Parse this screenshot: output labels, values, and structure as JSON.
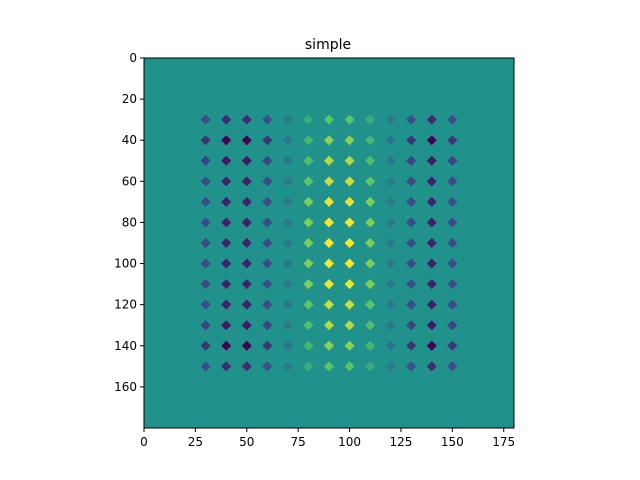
{
  "chart_data": {
    "type": "heatmap",
    "title": "simple",
    "xlabel": "",
    "ylabel": "",
    "xlim": [
      0,
      180
    ],
    "ylim": [
      0,
      180
    ],
    "y_inverted": true,
    "grid": false,
    "background_color": "#21918c",
    "x_ticks": [
      0,
      25,
      50,
      75,
      100,
      125,
      150,
      175
    ],
    "y_ticks": [
      0,
      20,
      40,
      60,
      80,
      100,
      120,
      140,
      160
    ],
    "marker_shape": "diamond",
    "marker_x": [
      30,
      40,
      50,
      60,
      70,
      80,
      90,
      100,
      110,
      120,
      130,
      140,
      150
    ],
    "marker_y": [
      30,
      40,
      50,
      60,
      70,
      80,
      90,
      100,
      110,
      120,
      130,
      140,
      150
    ],
    "colormap": "viridis",
    "value_range": [
      -1,
      1
    ],
    "values": [
      [
        -0.53,
        -0.75,
        -0.75,
        -0.53,
        -0.17,
        0.23,
        0.46,
        0.46,
        0.23,
        -0.17,
        -0.53,
        -0.75,
        -0.53
      ],
      [
        -0.68,
        -1.0,
        -1.0,
        -0.68,
        -0.23,
        0.34,
        0.65,
        0.65,
        0.34,
        -0.23,
        -0.68,
        -1.0,
        -0.68
      ],
      [
        -0.6,
        -0.85,
        -0.85,
        -0.6,
        -0.2,
        0.4,
        0.78,
        0.78,
        0.4,
        -0.2,
        -0.6,
        -0.85,
        -0.6
      ],
      [
        -0.55,
        -0.8,
        -0.8,
        -0.55,
        -0.18,
        0.48,
        0.85,
        0.85,
        0.48,
        -0.18,
        -0.55,
        -0.8,
        -0.55
      ],
      [
        -0.55,
        -0.8,
        -0.8,
        -0.55,
        -0.18,
        0.6,
        0.95,
        0.95,
        0.6,
        -0.18,
        -0.55,
        -0.8,
        -0.55
      ],
      [
        -0.55,
        -0.8,
        -0.8,
        -0.55,
        -0.18,
        0.6,
        0.98,
        0.98,
        0.6,
        -0.18,
        -0.55,
        -0.8,
        -0.55
      ],
      [
        -0.55,
        -0.8,
        -0.8,
        -0.55,
        -0.18,
        0.6,
        1.0,
        1.0,
        0.6,
        -0.18,
        -0.55,
        -0.8,
        -0.55
      ],
      [
        -0.55,
        -0.8,
        -0.8,
        -0.55,
        -0.18,
        0.6,
        0.98,
        0.98,
        0.6,
        -0.18,
        -0.55,
        -0.8,
        -0.55
      ],
      [
        -0.55,
        -0.8,
        -0.8,
        -0.55,
        -0.18,
        0.6,
        0.95,
        0.95,
        0.6,
        -0.18,
        -0.55,
        -0.8,
        -0.55
      ],
      [
        -0.55,
        -0.8,
        -0.8,
        -0.55,
        -0.18,
        0.48,
        0.85,
        0.85,
        0.48,
        -0.18,
        -0.55,
        -0.8,
        -0.55
      ],
      [
        -0.6,
        -0.85,
        -0.85,
        -0.6,
        -0.2,
        0.4,
        0.78,
        0.78,
        0.4,
        -0.2,
        -0.6,
        -0.85,
        -0.6
      ],
      [
        -0.68,
        -1.0,
        -1.0,
        -0.68,
        -0.23,
        0.34,
        0.65,
        0.65,
        0.34,
        -0.23,
        -0.68,
        -1.0,
        -0.68
      ],
      [
        -0.53,
        -0.75,
        -0.75,
        -0.53,
        -0.17,
        0.23,
        0.46,
        0.46,
        0.23,
        -0.17,
        -0.53,
        -0.75,
        -0.53
      ]
    ]
  }
}
